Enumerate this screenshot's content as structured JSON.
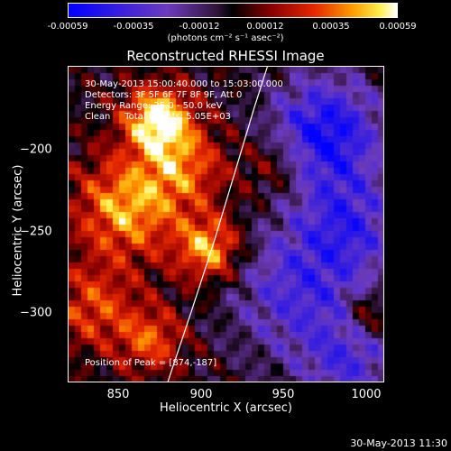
{
  "colorbar": {
    "tick_labels": [
      "-0.00059",
      "-0.00035",
      "-0.00012",
      "0.00012",
      "0.00035",
      "0.00059"
    ],
    "units": "(photons cm⁻² s⁻¹ asec⁻²)"
  },
  "chart_data": {
    "type": "heatmap",
    "title": "Reconstructed RHESSI Image",
    "xlabel": "Heliocentric X (arcsec)",
    "ylabel": "Heliocentric Y (arcsec)",
    "xlim": [
      820,
      1010
    ],
    "ylim": [
      -345,
      -155
    ],
    "x_ticks": [
      850,
      900,
      950,
      1000
    ],
    "y_ticks": [
      -200,
      -250,
      -300
    ],
    "x_tick_labels": [
      "850",
      "900",
      "950",
      "1000"
    ],
    "y_tick_labels": [
      "−200",
      "−250",
      "−300"
    ],
    "value_range": [
      -0.00059,
      0.00059
    ],
    "annotations": [
      "30-May-2013 15:00:40.000 to 15:03:00.000",
      "Detectors: 3F 5F 6F 7F 8F 9F, Att 0",
      "Energy Range: 25.0 - 50.0 keV",
      "Clean     Total Counts: 5.05E+03"
    ],
    "peak_label": "Position of Peak = [874,-187]",
    "peak": [
      874,
      -187
    ],
    "limb_curve": [
      [
        880,
        -345
      ],
      [
        895,
        -300
      ],
      [
        908,
        -260
      ],
      [
        920,
        -220
      ],
      [
        932,
        -180
      ],
      [
        940,
        -155
      ]
    ]
  },
  "timestamp": "30-May-2013 11:30",
  "colors": {
    "background": "#000000",
    "foreground": "#ffffff"
  }
}
